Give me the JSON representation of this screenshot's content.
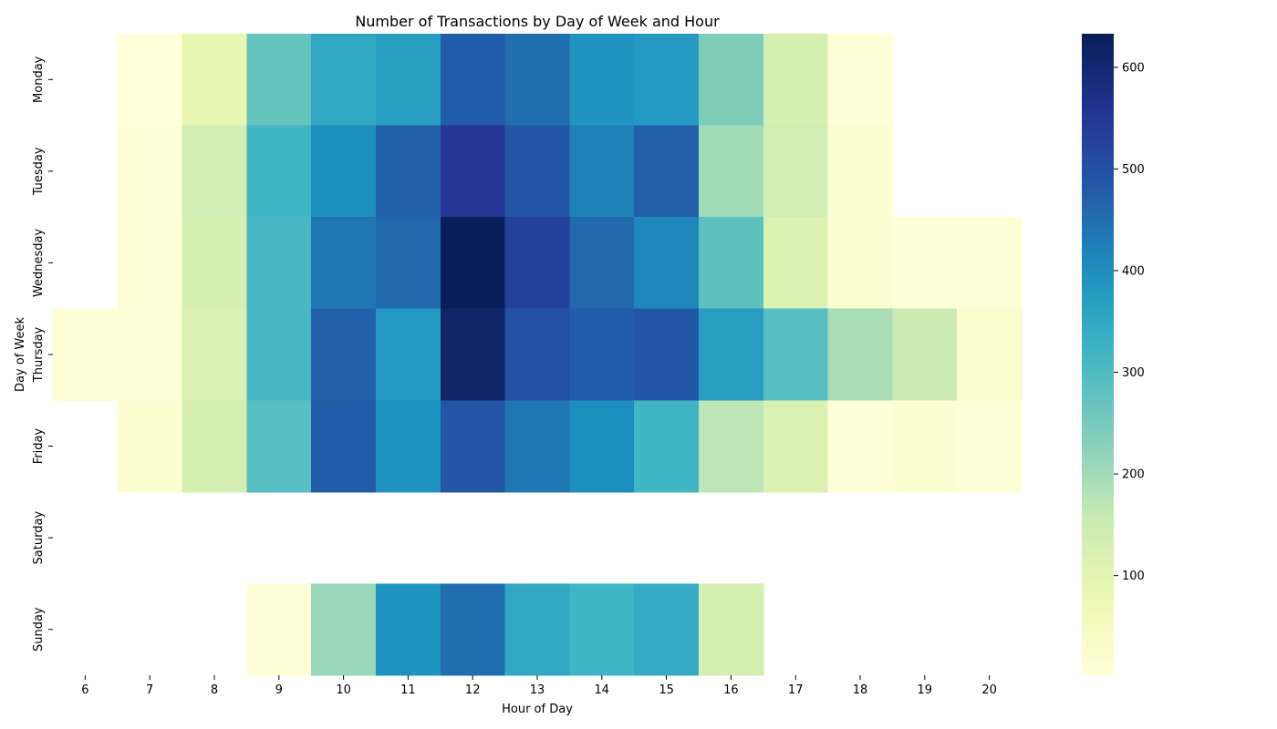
{
  "chart_data": {
    "type": "heatmap",
    "title": "Number of Transactions by Day of Week and Hour",
    "xlabel": "Hour of Day",
    "ylabel": "Day of Week",
    "x": [
      "6",
      "7",
      "8",
      "9",
      "10",
      "11",
      "12",
      "13",
      "14",
      "15",
      "16",
      "17",
      "18",
      "19",
      "20"
    ],
    "y": [
      "Monday",
      "Tuesday",
      "Wednesday",
      "Thursday",
      "Friday",
      "Saturday",
      "Sunday"
    ],
    "values": [
      [
        null,
        2,
        90,
        270,
        350,
        370,
        480,
        450,
        390,
        380,
        240,
        130,
        5,
        null,
        null
      ],
      [
        null,
        10,
        140,
        320,
        400,
        470,
        550,
        490,
        420,
        470,
        200,
        140,
        15,
        null,
        null
      ],
      [
        null,
        10,
        130,
        310,
        440,
        460,
        630,
        530,
        460,
        410,
        280,
        120,
        15,
        5,
        5
      ],
      [
        5,
        10,
        120,
        310,
        470,
        380,
        610,
        500,
        480,
        490,
        370,
        290,
        190,
        150,
        25
      ],
      [
        null,
        15,
        130,
        290,
        480,
        390,
        490,
        440,
        400,
        320,
        170,
        120,
        5,
        15,
        5
      ],
      [
        null,
        null,
        null,
        null,
        null,
        null,
        null,
        null,
        null,
        null,
        null,
        null,
        null,
        null,
        null
      ],
      [
        null,
        null,
        null,
        5,
        210,
        390,
        450,
        350,
        320,
        340,
        130,
        null,
        null,
        null,
        null
      ]
    ],
    "colorbar": {
      "min": 2,
      "max": 633,
      "ticks": [
        100,
        200,
        300,
        400,
        500,
        600
      ]
    },
    "colormap": "YlGnBu"
  }
}
